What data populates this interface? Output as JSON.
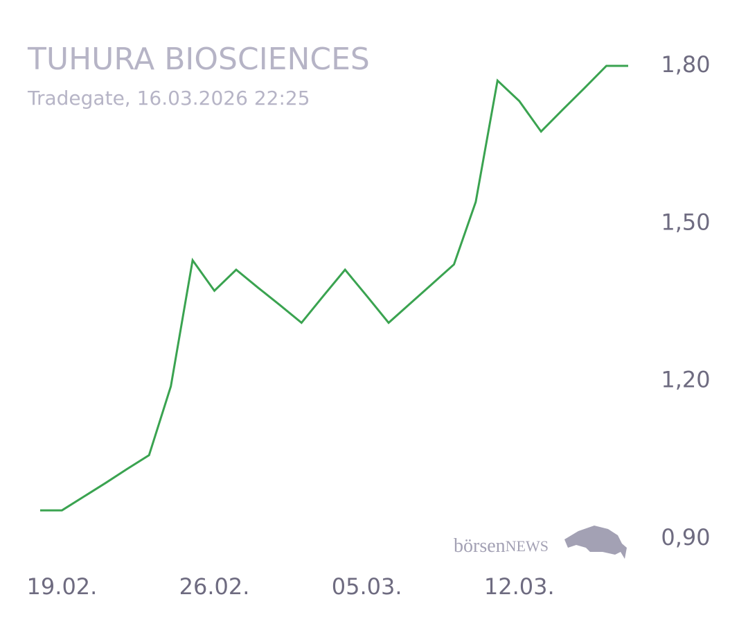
{
  "chart_data": {
    "type": "line",
    "title": "TUHURA BIOSCIENCES",
    "subtitle": "Tradegate, 16.03.2026 22:25",
    "logo": {
      "prefix": "börsen",
      "suffix": "NEWS"
    },
    "categories": [
      null,
      "19.02.",
      null,
      null,
      null,
      null,
      null,
      null,
      "26.02.",
      null,
      null,
      null,
      null,
      null,
      null,
      "05.03.",
      null,
      null,
      null,
      null,
      null,
      null,
      "12.03.",
      null,
      null,
      null,
      null,
      null
    ],
    "series": [
      {
        "name": "TUHURA BIOSCIENCES",
        "color": "#3aa350",
        "values": [
          0.954,
          0.954,
          0.98,
          1.006,
          1.033,
          1.059,
          1.19,
          1.43,
          1.372,
          1.412,
          1.378,
          1.345,
          1.311,
          1.362,
          1.412,
          1.362,
          1.311,
          1.348,
          1.385,
          1.422,
          1.541,
          1.772,
          1.733,
          1.675,
          1.717,
          1.758,
          1.8,
          1.8
        ]
      }
    ],
    "ylim": [
      0.9,
      1.8
    ],
    "yticks": [
      {
        "value": 0.9,
        "label": "0,90"
      },
      {
        "value": 1.2,
        "label": "1,20"
      },
      {
        "value": 1.5,
        "label": "1,50"
      },
      {
        "value": 1.8,
        "label": "1,80"
      }
    ],
    "grid": false
  }
}
